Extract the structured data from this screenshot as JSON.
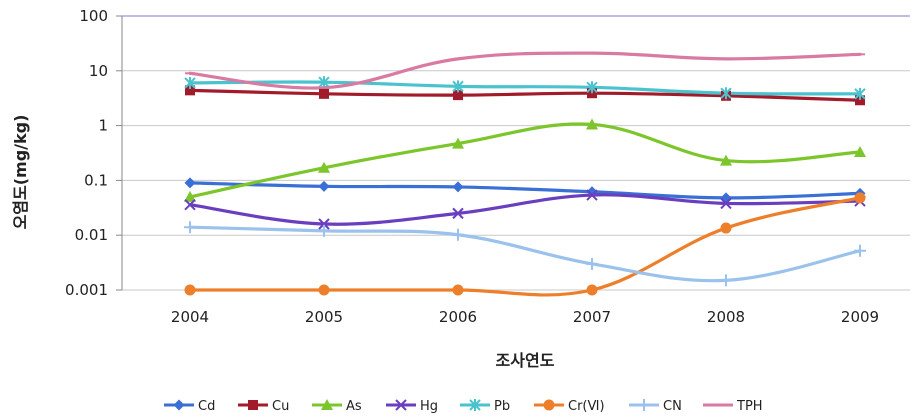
{
  "chart_data": {
    "type": "line",
    "title": "",
    "xlabel": "조사연도",
    "ylabel": "오염도(mg/kg)",
    "yscale": "log",
    "ylim": [
      0.001,
      100
    ],
    "grid": "horizontal",
    "legend_position": "bottom",
    "x": [
      "2004",
      "2005",
      "2006",
      "2007",
      "2008",
      "2009"
    ],
    "y_tick_labels": [
      "100",
      "10",
      "1",
      "0.1",
      "0.01",
      "0.001"
    ],
    "y_tick_values": [
      100,
      10,
      1,
      0.1,
      0.01,
      0.001
    ],
    "series": [
      {
        "name": "Cd",
        "color": "#3a6fd6",
        "marker": "diamond",
        "values": [
          0.09,
          0.078,
          0.076,
          0.062,
          0.048,
          0.058
        ]
      },
      {
        "name": "Cu",
        "color": "#a11b2a",
        "marker": "square",
        "values": [
          4.4,
          3.8,
          3.6,
          3.9,
          3.5,
          2.9
        ]
      },
      {
        "name": "As",
        "color": "#7cc62c",
        "marker": "triangle",
        "values": [
          0.05,
          0.17,
          0.47,
          1.05,
          0.23,
          0.33
        ]
      },
      {
        "name": "Hg",
        "color": "#6a3fbf",
        "marker": "x",
        "values": [
          0.036,
          0.016,
          0.025,
          0.054,
          0.038,
          0.042
        ]
      },
      {
        "name": "Pb",
        "color": "#4bc3cf",
        "marker": "asterisk",
        "values": [
          6.0,
          6.2,
          5.2,
          5.0,
          3.9,
          3.8
        ]
      },
      {
        "name": "Cr(Ⅵ)",
        "color": "#ee7f2a",
        "marker": "circle",
        "values": [
          0.001,
          0.001,
          0.001,
          0.001,
          0.0135,
          0.048
        ]
      },
      {
        "name": "CN",
        "color": "#9ac2ec",
        "marker": "plus",
        "values": [
          0.014,
          0.012,
          0.0102,
          0.003,
          0.0015,
          0.0052
        ]
      },
      {
        "name": "TPH",
        "color": "#d97aa2",
        "marker": "dash",
        "values": [
          9.0,
          4.9,
          16.5,
          21.0,
          16.5,
          20.0
        ]
      }
    ]
  }
}
